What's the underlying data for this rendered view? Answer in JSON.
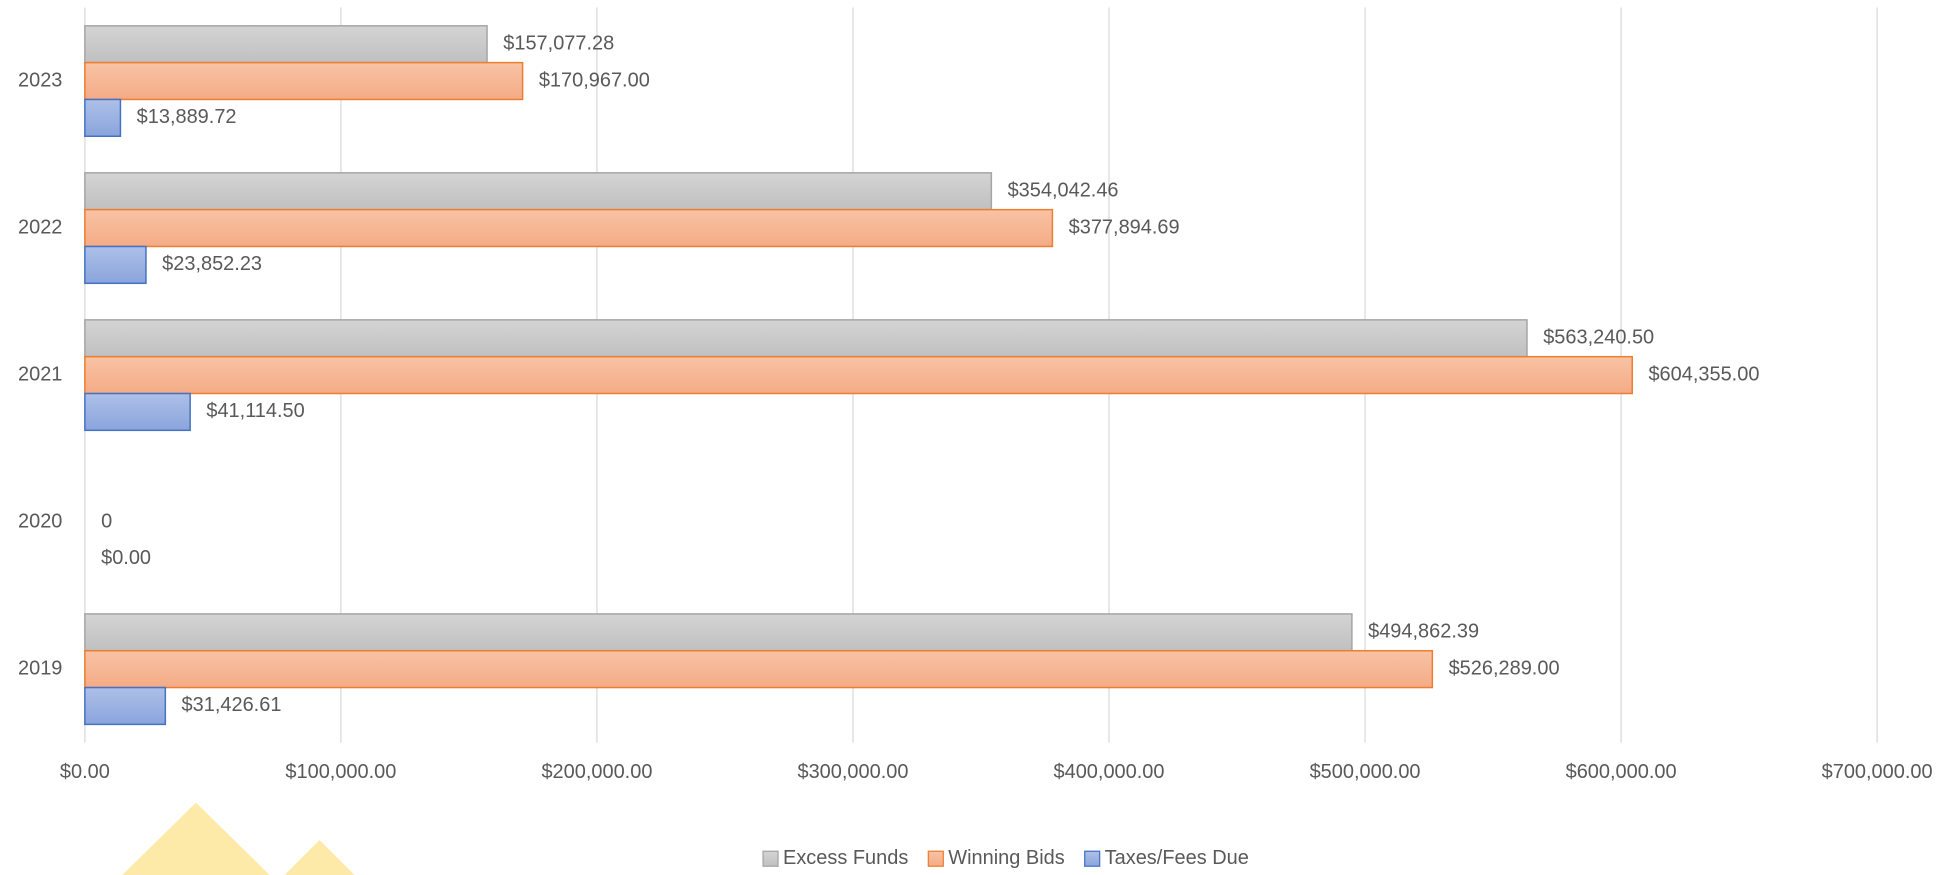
{
  "chart_data": {
    "type": "bar",
    "orientation": "horizontal",
    "categories": [
      "2023",
      "2022",
      "2021",
      "2020",
      "2019"
    ],
    "series": [
      {
        "name": "Excess Funds",
        "color": "#a5a5a5",
        "values": [
          157077.28,
          354042.46,
          563240.5,
          null,
          494862.39
        ],
        "value_labels": [
          "$157,077.28",
          "$354,042.46",
          "$563,240.50",
          null,
          "$494,862.39"
        ]
      },
      {
        "name": "Winning Bids",
        "color": "#ed7d31",
        "values": [
          170967,
          377894.69,
          604355,
          0,
          526289
        ],
        "value_labels": [
          "$170,967.00",
          "$377,894.69",
          "$604,355.00",
          "0",
          "$526,289.00"
        ]
      },
      {
        "name": "Taxes/Fees Due",
        "color": "#4472c4",
        "values": [
          13889.72,
          23852.23,
          41114.5,
          0,
          31426.61
        ],
        "value_labels": [
          "$13,889.72",
          "$23,852.23",
          "$41,114.50",
          "$0.00",
          "$31,426.61"
        ]
      }
    ],
    "xlim": [
      0,
      700000
    ],
    "xticks": [
      {
        "value": 0,
        "label": "$0.00"
      },
      {
        "value": 100000,
        "label": "$100,000.00"
      },
      {
        "value": 200000,
        "label": "$200,000.00"
      },
      {
        "value": 300000,
        "label": "$300,000.00"
      },
      {
        "value": 400000,
        "label": "$400,000.00"
      },
      {
        "value": 500000,
        "label": "$500,000.00"
      },
      {
        "value": 600000,
        "label": "$600,000.00"
      },
      {
        "value": 700000,
        "label": "$700,000.00"
      }
    ],
    "grid": true,
    "legend": "bottom"
  }
}
